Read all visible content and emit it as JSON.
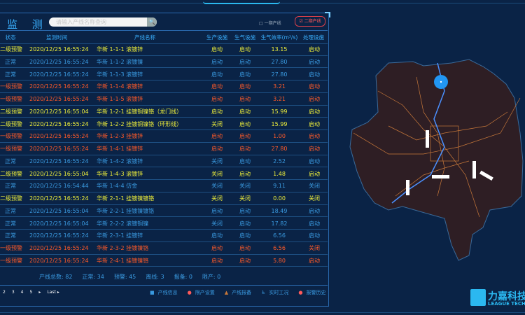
{
  "header": {
    "title": "监 测",
    "search_placeholder": "请输入产线名称查询",
    "option_one": "□ 一期产线",
    "option_two": "☑ 二期产线"
  },
  "columns": [
    "状态",
    "监测时间",
    "产线名称",
    "生产设施",
    "生气设施",
    "生气效率(m³/s)",
    "处理设施"
  ],
  "rows": [
    {
      "level": "warn2",
      "status": "二级预警",
      "time": "2020/12/25 16:55:24",
      "name": "华新 1-1-1 滚镀锌",
      "prod": "启动",
      "gas": "启动",
      "eff": "13.15",
      "treat": "启动"
    },
    {
      "level": "normal",
      "status": "正常",
      "time": "2020/12/25 16:55:24",
      "name": "华新 1-1-2 滚镀镍",
      "prod": "启动",
      "gas": "启动",
      "eff": "27.80",
      "treat": "启动"
    },
    {
      "level": "normal",
      "status": "正常",
      "time": "2020/12/25 16:55:24",
      "name": "华新 1-1-3 滚镀锌",
      "prod": "启动",
      "gas": "启动",
      "eff": "27.80",
      "treat": "启动"
    },
    {
      "level": "warn1",
      "status": "一级预警",
      "time": "2020/12/25 16:55:24",
      "name": "华新 1-1-4 滚镀锌",
      "prod": "启动",
      "gas": "启动",
      "eff": "3.21",
      "treat": "启动"
    },
    {
      "level": "warn1",
      "status": "一级预警",
      "time": "2020/12/25 16:55:24",
      "name": "华新 1-1-5 滚镀锌",
      "prod": "启动",
      "gas": "启动",
      "eff": "3.21",
      "treat": "启动"
    },
    {
      "level": "warn2",
      "status": "二级预警",
      "time": "2020/12/25 16:55:04",
      "name": "华新 1-2-1 挂镀铜镍铬（龙门线）",
      "prod": "启动",
      "gas": "启动",
      "eff": "15.99",
      "treat": "启动"
    },
    {
      "level": "warn2",
      "status": "二级预警",
      "time": "2020/12/25 16:55:24",
      "name": "华新 1-2-2 挂镀铜镍铬（环形线）",
      "prod": "关闭",
      "gas": "启动",
      "eff": "15.99",
      "treat": "启动"
    },
    {
      "level": "warn1",
      "status": "一级预警",
      "time": "2020/12/25 16:55:24",
      "name": "华新 1-2-3 挂镀锌",
      "prod": "启动",
      "gas": "启动",
      "eff": "1.00",
      "treat": "启动"
    },
    {
      "level": "warn1",
      "status": "一级预警",
      "time": "2020/12/25 16:55:24",
      "name": "华新 1-4-1 挂镀锌",
      "prod": "启动",
      "gas": "启动",
      "eff": "27.80",
      "treat": "启动"
    },
    {
      "level": "normal",
      "status": "正常",
      "time": "2020/12/25 16:55:24",
      "name": "华新 1-4-2 滚镀锌",
      "prod": "关闭",
      "gas": "启动",
      "eff": "2.52",
      "treat": "启动"
    },
    {
      "level": "warn2",
      "status": "二级预警",
      "time": "2020/12/25 16:55:04",
      "name": "华新 1-4-3 滚镀锌",
      "prod": "关闭",
      "gas": "启动",
      "eff": "1.48",
      "treat": "启动"
    },
    {
      "level": "normal",
      "status": "正常",
      "time": "2020/12/25 16:54:44",
      "name": "华新 1-4-4 仿金",
      "prod": "关闭",
      "gas": "关闭",
      "eff": "9.11",
      "treat": "关闭"
    },
    {
      "level": "warn2",
      "status": "二级预警",
      "time": "2020/12/25 16:55:24",
      "name": "华新 2-1-1 挂镀镍镀铬",
      "prod": "关闭",
      "gas": "关闭",
      "eff": "0.00",
      "treat": "关闭"
    },
    {
      "level": "normal",
      "status": "正常",
      "time": "2020/12/25 16:55:04",
      "name": "华新 2-2-1 挂镀镍镀铬",
      "prod": "启动",
      "gas": "启动",
      "eff": "18.49",
      "treat": "启动"
    },
    {
      "level": "normal",
      "status": "正常",
      "time": "2020/12/25 16:55:04",
      "name": "华新 2-2-2 滚镀铜镍",
      "prod": "关闭",
      "gas": "启动",
      "eff": "17.82",
      "treat": "启动"
    },
    {
      "level": "normal",
      "status": "正常",
      "time": "2020/12/25 16:55:24",
      "name": "华新 2-3-1 挂镀锌",
      "prod": "启动",
      "gas": "启动",
      "eff": "6.56",
      "treat": "启动"
    },
    {
      "level": "warn1",
      "status": "一级预警",
      "time": "2020/12/25 16:55:24",
      "name": "华新 2-3-2 挂镀镍铬",
      "prod": "启动",
      "gas": "启动",
      "eff": "6.56",
      "treat": "关闭"
    },
    {
      "level": "warn1",
      "status": "一级预警",
      "time": "2020/12/25 16:55:24",
      "name": "华新 2-4-1 挂镀镍铬",
      "prod": "启动",
      "gas": "启动",
      "eff": "5.80",
      "treat": "启动"
    }
  ],
  "stats": [
    "产线总数: 82",
    "正常: 34",
    "预警: 45",
    "离线: 3",
    "报备: 0",
    "限产: 0"
  ],
  "pagination": [
    "2",
    "3",
    "4",
    "5",
    "▸",
    "Last ▸"
  ],
  "links": [
    {
      "icon": "info-icon",
      "glyph": "■",
      "label": "产线信息"
    },
    {
      "icon": "limit-icon",
      "glyph": "●",
      "label": "限产设置"
    },
    {
      "icon": "warning-icon",
      "glyph": "▲",
      "label": "产线报备"
    },
    {
      "icon": "worker-icon",
      "glyph": "♿",
      "label": "实时工况"
    },
    {
      "icon": "history-icon",
      "glyph": "●",
      "label": "报警历史"
    }
  ],
  "logo": {
    "cn": "力嘉科技",
    "en": "LEAGUE TECH"
  },
  "colors": {
    "background": "#0a2346",
    "normal": "#3a9ae0",
    "warn2": "#f0f03a",
    "warn1": "#ff5a28",
    "map_fill": "#2e1e24",
    "roads": "#c8783a",
    "river": "#4a90ff"
  }
}
